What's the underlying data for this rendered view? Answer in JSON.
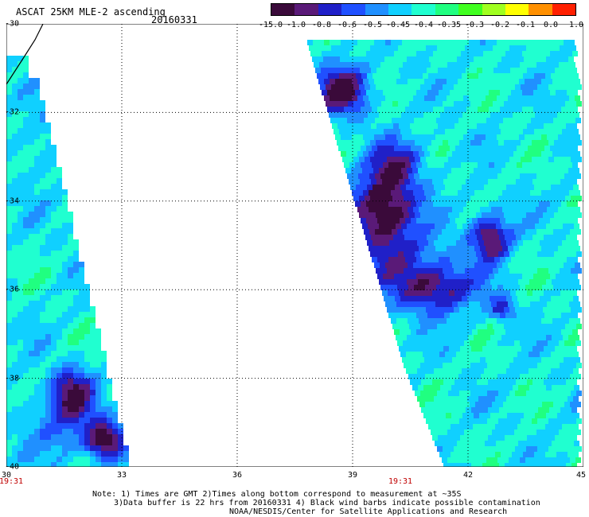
{
  "header": {
    "title": "ASCAT 25KM MLE-2 ascending",
    "date": "20160331"
  },
  "colorbar": {
    "labels": [
      "-15.0",
      "-1.0",
      "-0.8",
      "-0.6",
      "-0.5",
      "-0.45",
      "-0.4",
      "-0.35",
      "-0.3",
      "-0.2",
      "-0.1",
      "0.0",
      "1.0"
    ],
    "colors": [
      "#3a0a3a",
      "#5a1a78",
      "#2020c8",
      "#2050ff",
      "#2090ff",
      "#10d0ff",
      "#20ffd0",
      "#20ff80",
      "#40ff20",
      "#a0ff20",
      "#ffff00",
      "#ff9000",
      "#ff2000"
    ]
  },
  "axes": {
    "lat_labels": [
      "-30",
      "-32",
      "-34",
      "-36",
      "-38",
      "-40"
    ],
    "lon_labels": [
      "30",
      "33",
      "36",
      "39",
      "42",
      "45"
    ],
    "lat_range": [
      -40,
      -30
    ],
    "lon_range": [
      30,
      45
    ],
    "grid": true
  },
  "times": {
    "left": "19:31",
    "right": "19:31"
  },
  "notes": {
    "line1": "Note: 1) Times are GMT 2)Times along bottom correspond to measurement at ~35S",
    "line2": "3)Data buffer is 22 hrs from 20160331 4) Black wind barbs indicate possible contamination",
    "line3": "NOAA/NESDIS/Center for Satellite Applications and Research"
  }
}
